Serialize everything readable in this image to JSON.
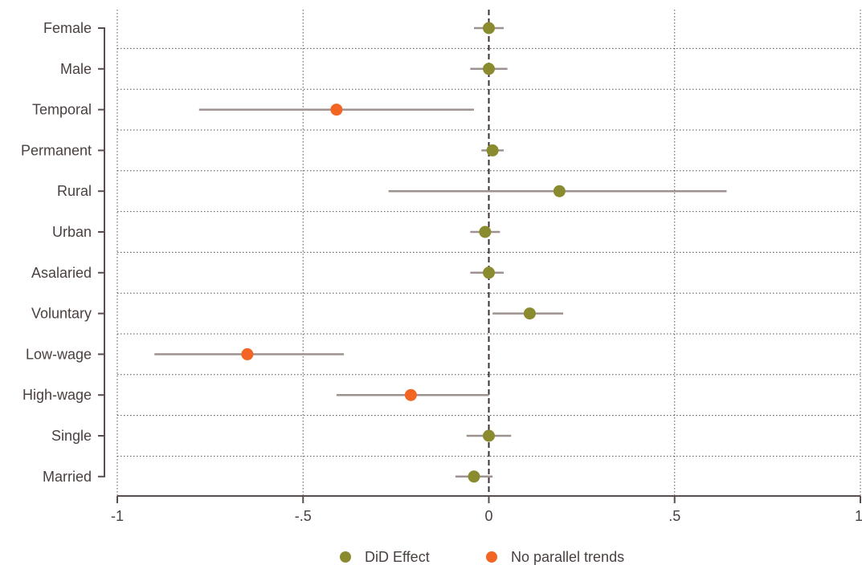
{
  "chart_data": {
    "type": "scatter",
    "subtype": "coefficient-plot",
    "title": "",
    "xlabel": "",
    "ylabel": "",
    "xlim": [
      -1,
      1
    ],
    "x_ticks": [
      {
        "value": -1,
        "label": "-1"
      },
      {
        "value": -0.5,
        "label": "-.5"
      },
      {
        "value": 0,
        "label": "0"
      },
      {
        "value": 0.5,
        "label": ".5"
      },
      {
        "value": 1,
        "label": "1"
      }
    ],
    "reference_line": {
      "x": 0,
      "style": "dashed"
    },
    "grid": true,
    "legend_position": "bottom",
    "series": [
      {
        "name": "DiD Effect",
        "color": "#8a8a2e"
      },
      {
        "name": "No parallel trends",
        "color": "#f26522"
      }
    ],
    "ci_color": "#9e9290",
    "axis_color": "#5a4d4d",
    "categories": [
      "Female",
      "Male",
      "Temporal",
      "Permanent",
      "Rural",
      "Urban",
      "Asalaried",
      "Voluntary",
      "Low-wage",
      "High-wage",
      "Single",
      "Married"
    ],
    "points": [
      {
        "category": "Female",
        "estimate": 0.0,
        "ci_low": -0.04,
        "ci_high": 0.04,
        "series": "DiD Effect"
      },
      {
        "category": "Male",
        "estimate": 0.0,
        "ci_low": -0.05,
        "ci_high": 0.05,
        "series": "DiD Effect"
      },
      {
        "category": "Temporal",
        "estimate": -0.41,
        "ci_low": -0.78,
        "ci_high": -0.04,
        "series": "No parallel trends"
      },
      {
        "category": "Permanent",
        "estimate": 0.01,
        "ci_low": -0.02,
        "ci_high": 0.04,
        "series": "DiD Effect"
      },
      {
        "category": "Rural",
        "estimate": 0.19,
        "ci_low": -0.27,
        "ci_high": 0.64,
        "series": "DiD Effect"
      },
      {
        "category": "Urban",
        "estimate": -0.01,
        "ci_low": -0.05,
        "ci_high": 0.03,
        "series": "DiD Effect"
      },
      {
        "category": "Asalaried",
        "estimate": 0.0,
        "ci_low": -0.05,
        "ci_high": 0.04,
        "series": "DiD Effect"
      },
      {
        "category": "Voluntary",
        "estimate": 0.11,
        "ci_low": 0.01,
        "ci_high": 0.2,
        "series": "DiD Effect"
      },
      {
        "category": "Low-wage",
        "estimate": -0.65,
        "ci_low": -0.9,
        "ci_high": -0.39,
        "series": "No parallel trends"
      },
      {
        "category": "High-wage",
        "estimate": -0.21,
        "ci_low": -0.41,
        "ci_high": 0.0,
        "series": "No parallel trends"
      },
      {
        "category": "Single",
        "estimate": 0.0,
        "ci_low": -0.06,
        "ci_high": 0.06,
        "series": "DiD Effect"
      },
      {
        "category": "Married",
        "estimate": -0.04,
        "ci_low": -0.09,
        "ci_high": 0.01,
        "series": "DiD Effect"
      }
    ]
  }
}
